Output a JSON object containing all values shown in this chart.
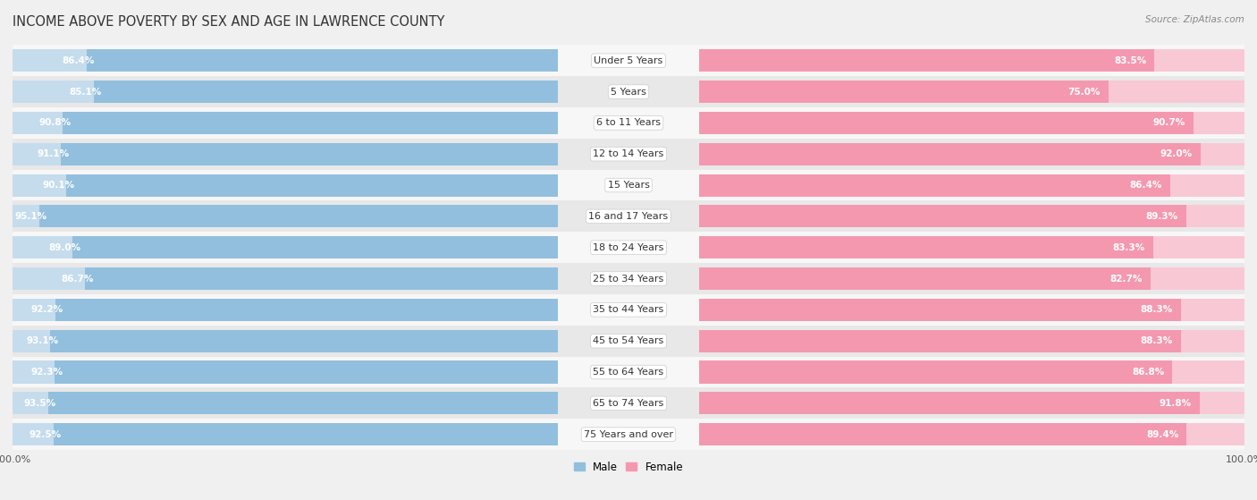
{
  "title": "INCOME ABOVE POVERTY BY SEX AND AGE IN LAWRENCE COUNTY",
  "source": "Source: ZipAtlas.com",
  "categories": [
    "Under 5 Years",
    "5 Years",
    "6 to 11 Years",
    "12 to 14 Years",
    "15 Years",
    "16 and 17 Years",
    "18 to 24 Years",
    "25 to 34 Years",
    "35 to 44 Years",
    "45 to 54 Years",
    "55 to 64 Years",
    "65 to 74 Years",
    "75 Years and over"
  ],
  "male_values": [
    86.4,
    85.1,
    90.8,
    91.1,
    90.1,
    95.1,
    89.0,
    86.7,
    92.2,
    93.1,
    92.3,
    93.5,
    92.5
  ],
  "female_values": [
    83.5,
    75.0,
    90.7,
    92.0,
    86.4,
    89.3,
    83.3,
    82.7,
    88.3,
    88.3,
    86.8,
    91.8,
    89.4
  ],
  "male_color": "#92bfdd",
  "female_color": "#f498b0",
  "male_color_light": "#c5dced",
  "female_color_light": "#f9c8d5",
  "background_color": "#f0f0f0",
  "row_color_even": "#f7f7f7",
  "row_color_odd": "#e8e8e8",
  "title_fontsize": 10.5,
  "label_fontsize": 8.0,
  "value_fontsize": 7.5,
  "axis_max": 100.0,
  "legend_male": "Male",
  "legend_female": "Female"
}
